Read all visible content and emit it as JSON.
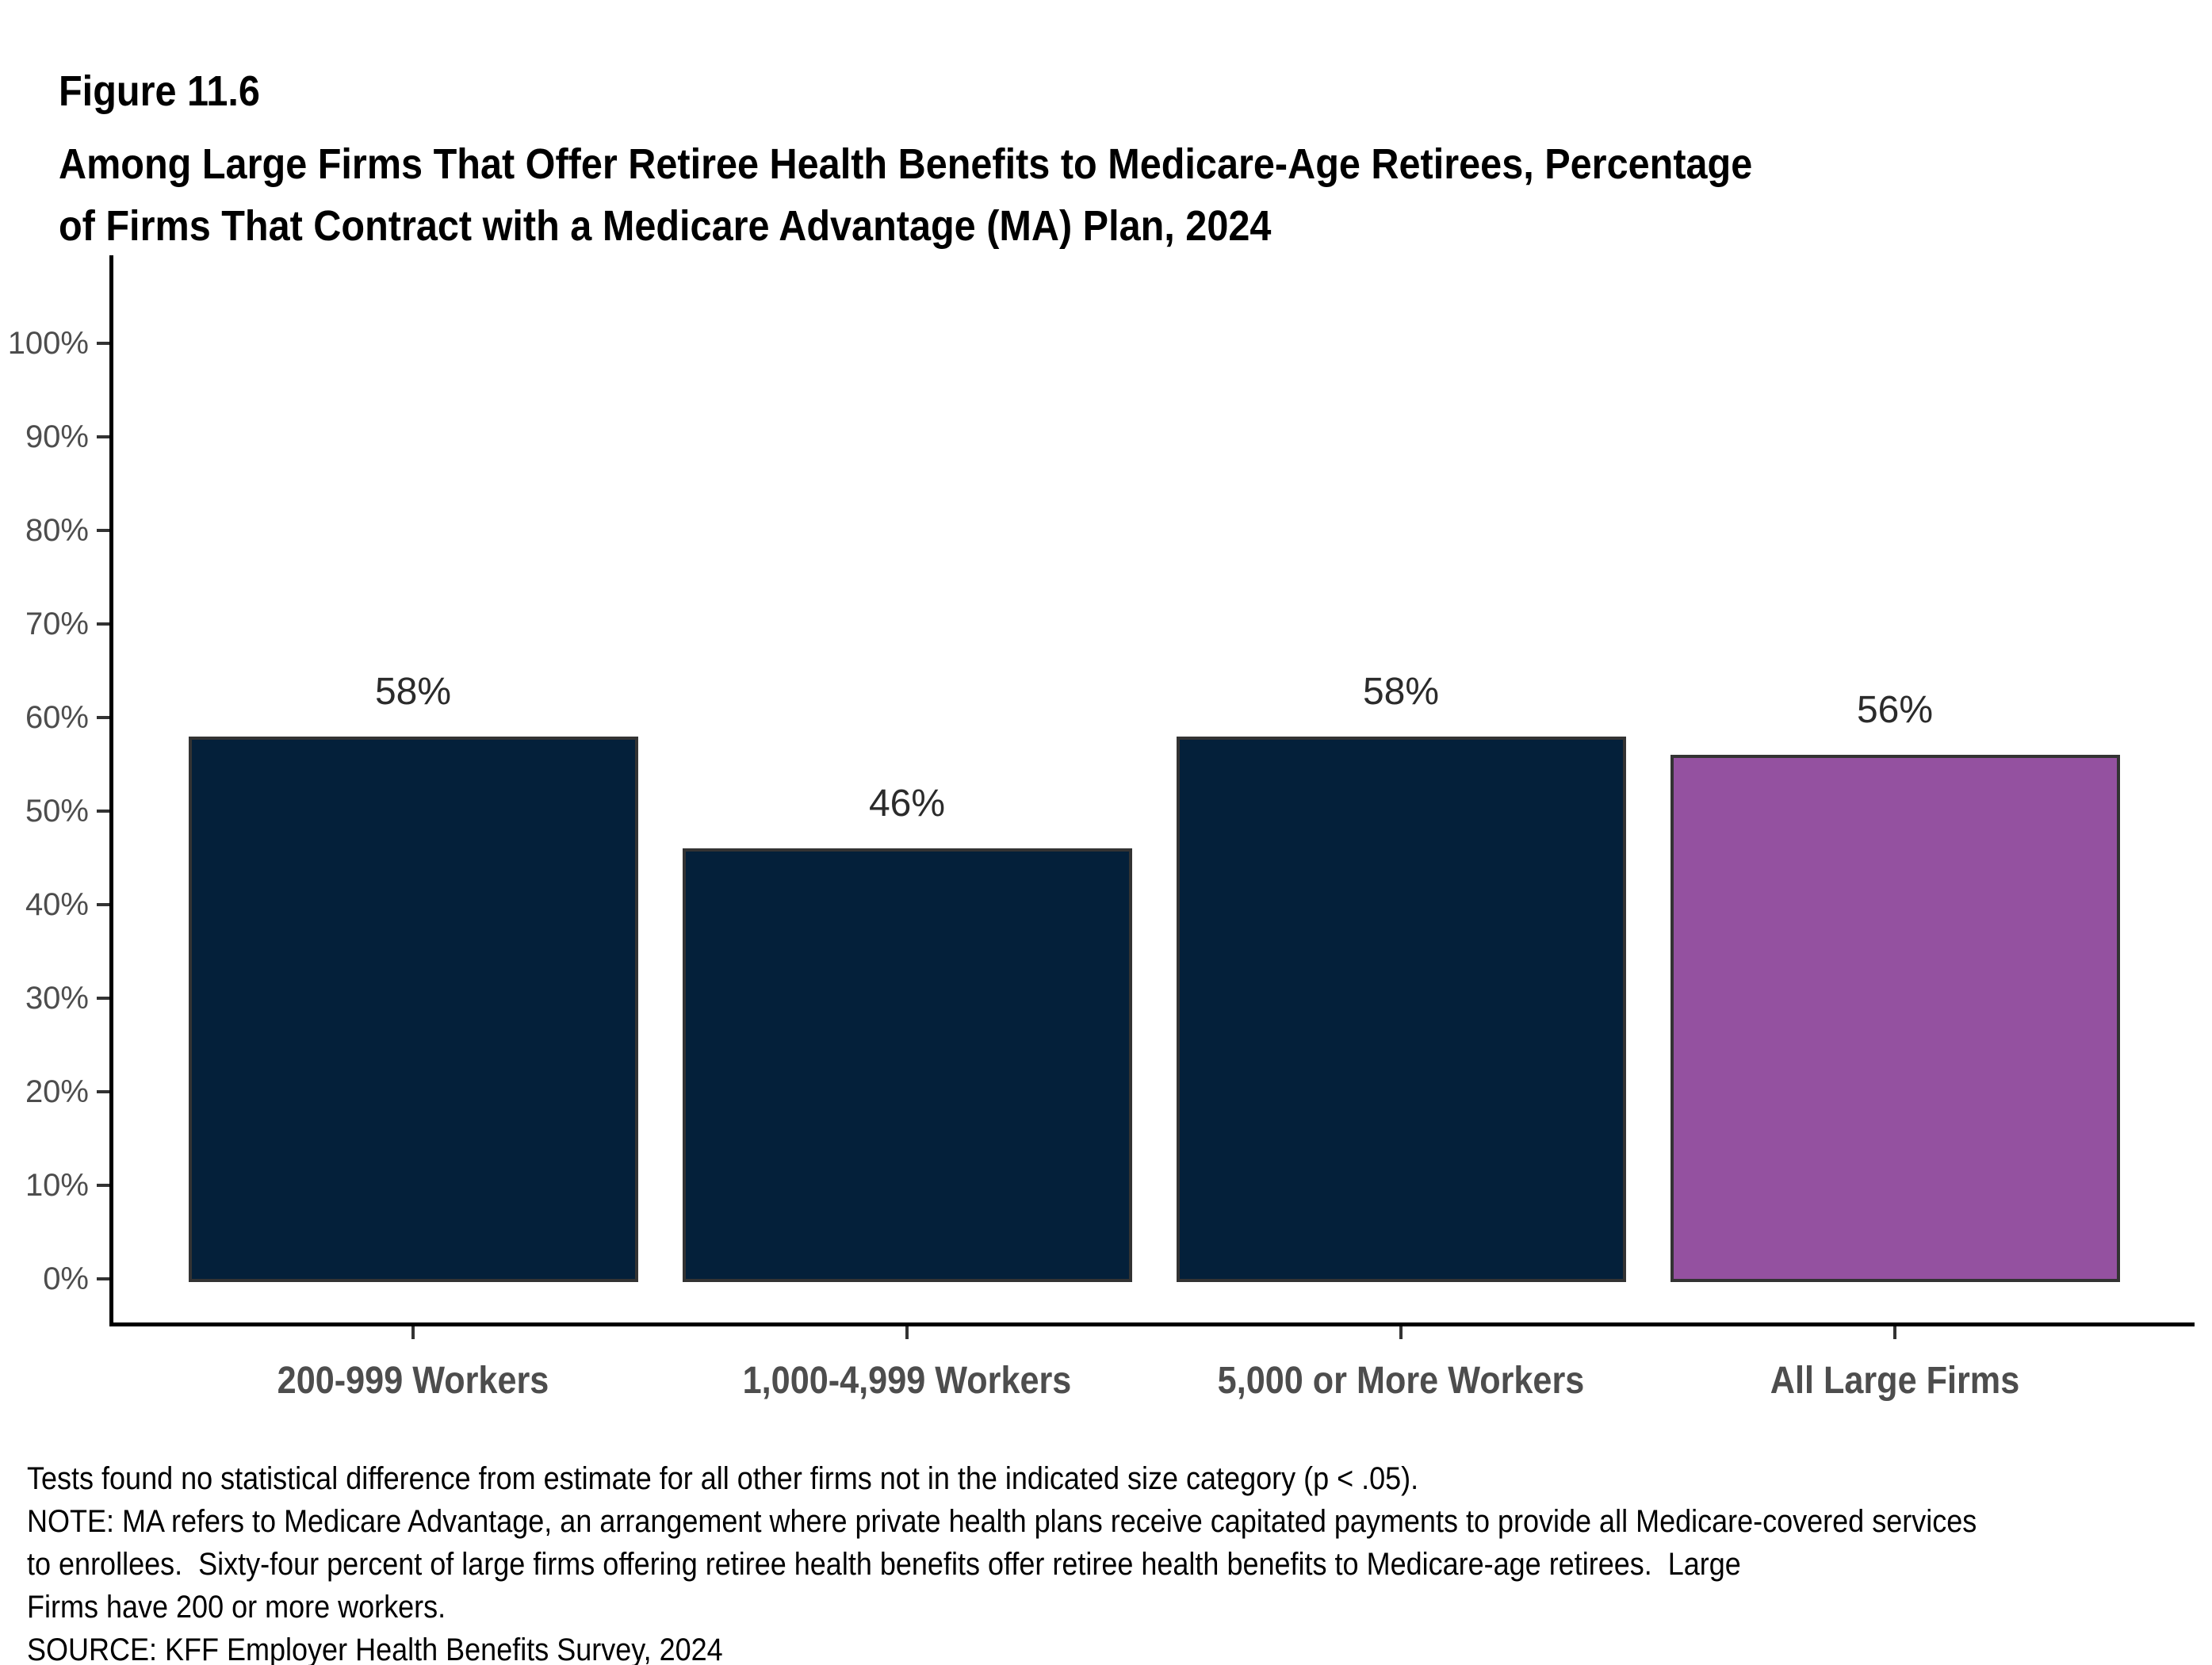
{
  "figure": {
    "label": "Figure 11.6",
    "title_lines": [
      "Among Large Firms That Offer Retiree Health Benefits to Medicare-Age Retirees, Percentage",
      "of Firms That Contract with a Medicare Advantage (MA) Plan, 2024"
    ]
  },
  "chart_data": {
    "type": "bar",
    "title": "Among Large Firms That Offer Retiree Health Benefits to Medicare-Age Retirees, Percentage of Firms That Contract with a Medicare Advantage (MA) Plan, 2024",
    "categories": [
      "200-999 Workers",
      "1,000-4,999 Workers",
      "5,000 or More Workers",
      "All Large Firms"
    ],
    "values": [
      58,
      46,
      58,
      56
    ],
    "value_labels": [
      "58%",
      "46%",
      "58%",
      "56%"
    ],
    "bar_colors": [
      "#04203a",
      "#04203a",
      "#04203a",
      "#9451a0"
    ],
    "bar_border_color": "#333333",
    "axis_color": "#000000",
    "tick_label_color": "#4d4d4d",
    "xlabel": "",
    "ylabel": "",
    "ylim": [
      0,
      100
    ],
    "ytick_labels": [
      "0%",
      "10%",
      "20%",
      "30%",
      "40%",
      "50%",
      "60%",
      "70%",
      "80%",
      "90%",
      "100%"
    ],
    "grid": false,
    "legend": "none"
  },
  "footnotes": {
    "lines": [
      "Tests found no statistical difference from estimate for all other firms not in the indicated size category (p < .05).",
      "NOTE: MA refers to Medicare Advantage, an arrangement where private health plans receive capitated payments to provide all Medicare-covered services",
      "to enrollees.  Sixty-four percent of large firms offering retiree health benefits offer retiree health benefits to Medicare-age retirees.  Large",
      "Firms have 200 or more workers.",
      "SOURCE: KFF Employer Health Benefits Survey, 2024"
    ]
  }
}
